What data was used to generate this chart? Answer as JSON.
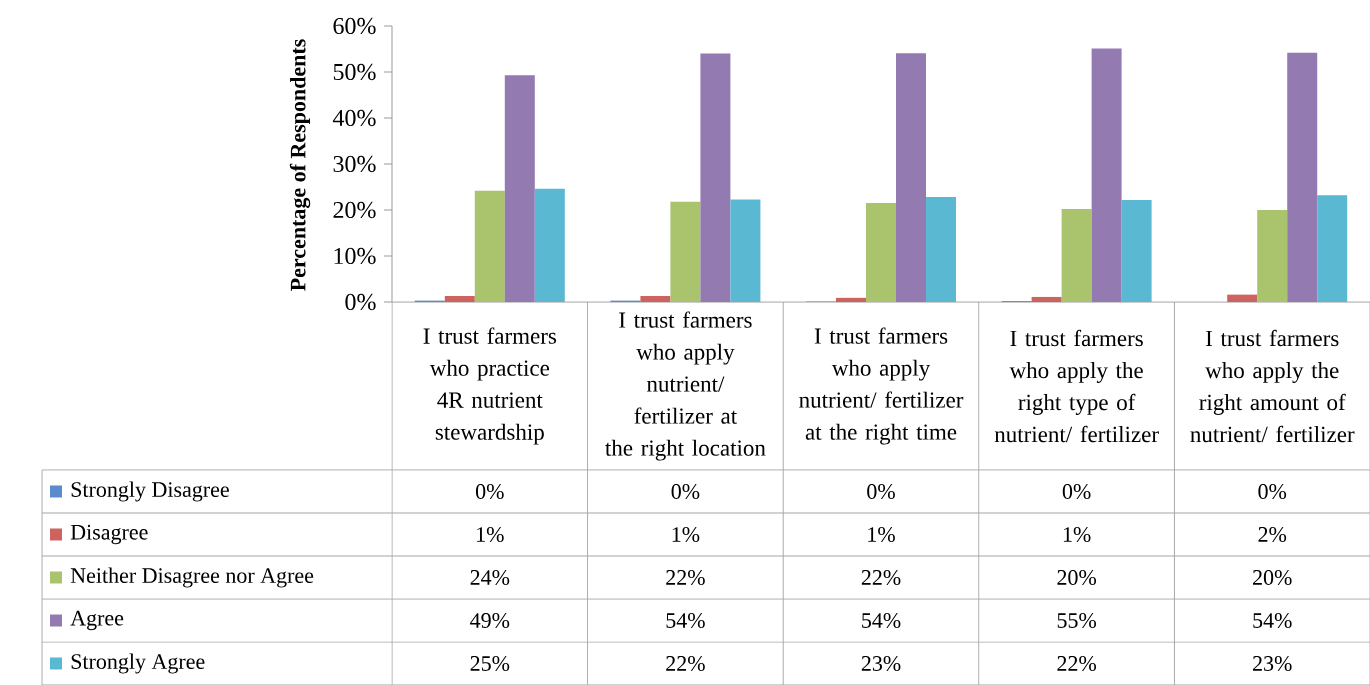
{
  "chart_data": {
    "type": "bar",
    "ylabel": "Percentage of Respondents",
    "categories": [
      "I trust farmers who practice 4R nutrient stewardship",
      "I trust farmers who apply nutrient/ fertilizer at the right location",
      "I trust farmers who apply nutrient/ fertilizer at the right time",
      "I trust farmers who apply the right type of nutrient/ fertilizer",
      "I trust farmers who apply the right amount of nutrient/ fertilizer"
    ],
    "series": [
      {
        "name": "Strongly Disagree",
        "color": "#5a8ccb",
        "values": [
          0.3,
          0.3,
          0.1,
          0.2,
          0.0
        ],
        "value_labels": [
          "0%",
          "0%",
          "0%",
          "0%",
          "0%"
        ]
      },
      {
        "name": "Disagree",
        "color": "#cd625f",
        "values": [
          1.3,
          1.3,
          0.9,
          1.1,
          1.6
        ],
        "value_labels": [
          "1%",
          "1%",
          "1%",
          "1%",
          "2%"
        ]
      },
      {
        "name": "Neither Disagree nor Agree",
        "color": "#a9c46c",
        "values": [
          24.2,
          21.8,
          21.5,
          20.2,
          20.0
        ],
        "value_labels": [
          "24%",
          "22%",
          "22%",
          "20%",
          "20%"
        ]
      },
      {
        "name": "Agree",
        "color": "#937ab1",
        "values": [
          49.3,
          54.0,
          54.1,
          55.1,
          54.2
        ],
        "value_labels": [
          "49%",
          "54%",
          "54%",
          "55%",
          "54%"
        ]
      },
      {
        "name": "Strongly Agree",
        "color": "#5bb8d3",
        "values": [
          24.6,
          22.3,
          22.8,
          22.2,
          23.2
        ],
        "value_labels": [
          "25%",
          "22%",
          "23%",
          "22%",
          "23%"
        ]
      }
    ],
    "ylim": [
      0,
      60
    ],
    "yticks": [
      {
        "value": 0,
        "label": "0%"
      },
      {
        "value": 10,
        "label": "10%"
      },
      {
        "value": 20,
        "label": "20%"
      },
      {
        "value": 30,
        "label": "30%"
      },
      {
        "value": 40,
        "label": "40%"
      },
      {
        "value": 50,
        "label": "50%"
      },
      {
        "value": 60,
        "label": "60%"
      }
    ],
    "legend": "bottom"
  }
}
